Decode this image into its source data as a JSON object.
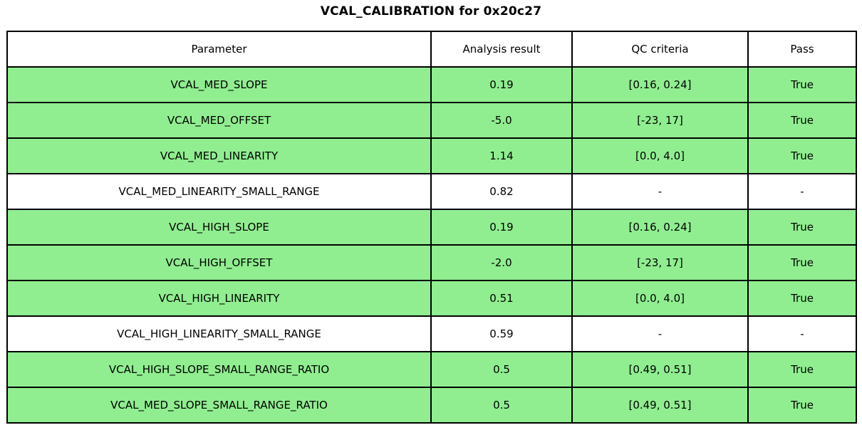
{
  "title": "VCAL_CALIBRATION for 0x20c27",
  "colors": {
    "pass_row": "#90ee90",
    "neutral_row": "#ffffff",
    "border": "#000000"
  },
  "chart_data": {
    "type": "table",
    "title": "VCAL_CALIBRATION for 0x20c27",
    "columns": [
      "Parameter",
      "Analysis result",
      "QC criteria",
      "Pass"
    ],
    "rows": [
      {
        "parameter": "VCAL_MED_SLOPE",
        "result": "0.19",
        "criteria": "[0.16, 0.24]",
        "pass": "True",
        "status": "pass"
      },
      {
        "parameter": "VCAL_MED_OFFSET",
        "result": "-5.0",
        "criteria": "[-23, 17]",
        "pass": "True",
        "status": "pass"
      },
      {
        "parameter": "VCAL_MED_LINEARITY",
        "result": "1.14",
        "criteria": "[0.0, 4.0]",
        "pass": "True",
        "status": "pass"
      },
      {
        "parameter": "VCAL_MED_LINEARITY_SMALL_RANGE",
        "result": "0.82",
        "criteria": "-",
        "pass": "-",
        "status": "neutral"
      },
      {
        "parameter": "VCAL_HIGH_SLOPE",
        "result": "0.19",
        "criteria": "[0.16, 0.24]",
        "pass": "True",
        "status": "pass"
      },
      {
        "parameter": "VCAL_HIGH_OFFSET",
        "result": "-2.0",
        "criteria": "[-23, 17]",
        "pass": "True",
        "status": "pass"
      },
      {
        "parameter": "VCAL_HIGH_LINEARITY",
        "result": "0.51",
        "criteria": "[0.0, 4.0]",
        "pass": "True",
        "status": "pass"
      },
      {
        "parameter": "VCAL_HIGH_LINEARITY_SMALL_RANGE",
        "result": "0.59",
        "criteria": "-",
        "pass": "-",
        "status": "neutral"
      },
      {
        "parameter": "VCAL_HIGH_SLOPE_SMALL_RANGE_RATIO",
        "result": "0.5",
        "criteria": "[0.49, 0.51]",
        "pass": "True",
        "status": "pass"
      },
      {
        "parameter": "VCAL_MED_SLOPE_SMALL_RANGE_RATIO",
        "result": "0.5",
        "criteria": "[0.49, 0.51]",
        "pass": "True",
        "status": "pass"
      }
    ]
  }
}
